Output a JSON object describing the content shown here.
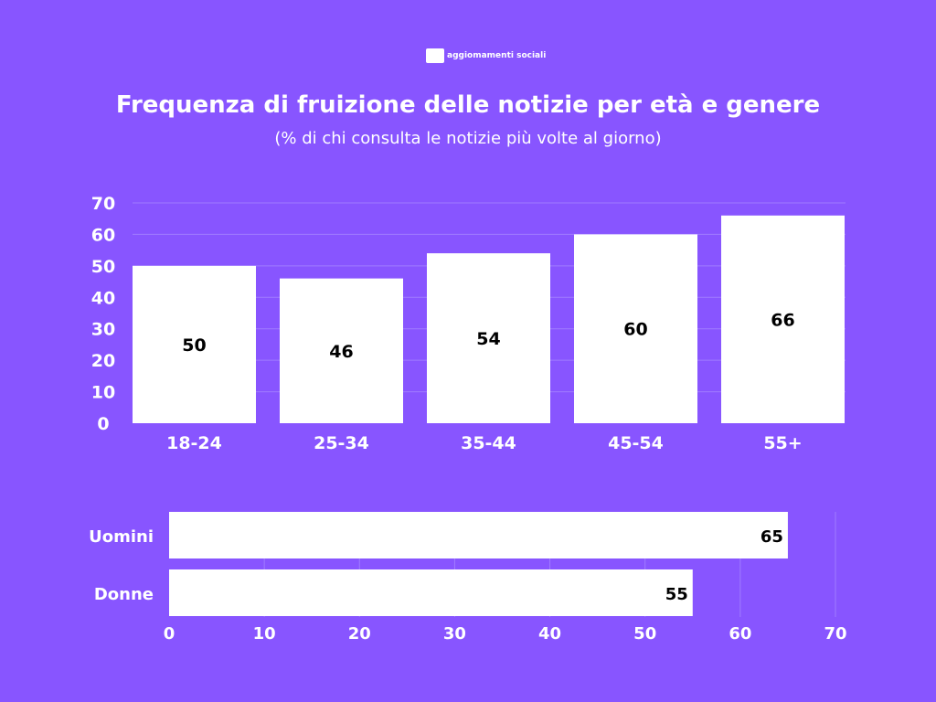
{
  "logo": {
    "text": "aggiomamenti sociali"
  },
  "colors": {
    "background": "#8855FF",
    "bar": "#FFFFFF",
    "grid": "#A07CFF"
  },
  "chart_data": [
    {
      "type": "bar",
      "title": "Frequenza di fruizione delle notizie per età e genere",
      "subtitle": "(% di chi consulta le notizie più volte al giorno)",
      "categories": [
        "18-24",
        "25-34",
        "35-44",
        "45-54",
        "55+"
      ],
      "values": [
        50,
        46,
        54,
        60,
        66
      ],
      "ylim": [
        0,
        70
      ],
      "yticks": [
        0,
        10,
        20,
        30,
        40,
        50,
        60,
        70
      ],
      "grid": true
    },
    {
      "type": "bar",
      "orientation": "horizontal",
      "categories": [
        "Uomini",
        "Donne"
      ],
      "values": [
        65,
        55
      ],
      "xlim": [
        0,
        70
      ],
      "xticks": [
        0,
        10,
        20,
        30,
        40,
        50,
        60,
        70
      ],
      "grid": true
    }
  ]
}
